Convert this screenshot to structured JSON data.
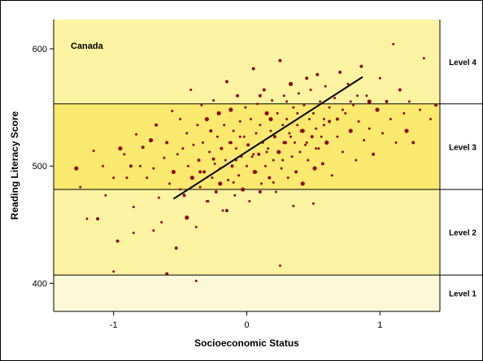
{
  "chart_data": {
    "type": "scatter",
    "title": "",
    "panel_label": "Canada",
    "xlabel": "Socioeconomic Status",
    "ylabel": "Reading Literacy Score",
    "xlim": [
      -1.45,
      1.45
    ],
    "ylim": [
      376,
      625
    ],
    "xticks": [
      {
        "value": -1,
        "label": "-1"
      },
      {
        "value": 0,
        "label": "0"
      },
      {
        "value": 1,
        "label": "1"
      }
    ],
    "yticks": [
      {
        "value": 400,
        "label": "400"
      },
      {
        "value": 500,
        "label": "500"
      },
      {
        "value": 600,
        "label": "600"
      }
    ],
    "bands": [
      {
        "label": "Level 1",
        "from": 376,
        "to": 407,
        "color": "#fcf9d8"
      },
      {
        "label": "Level 2",
        "from": 407,
        "to": 480,
        "color": "#fbf3a2"
      },
      {
        "label": "Level 3",
        "from": 480,
        "to": 553,
        "color": "#f9e96f"
      },
      {
        "label": "Level 4",
        "from": 553,
        "to": 625,
        "color": "#fbf3a2"
      }
    ],
    "point_color": "#8b0f0f",
    "regression_line": {
      "x1": -0.55,
      "y1": 472,
      "x2": 0.87,
      "y2": 576,
      "color": "#000000"
    },
    "points": [
      [
        -1.28,
        498
      ],
      [
        -1.25,
        482
      ],
      [
        -1.2,
        455
      ],
      [
        -1.15,
        513
      ],
      [
        -1.12,
        455
      ],
      [
        -1.08,
        500
      ],
      [
        -1.06,
        475
      ],
      [
        -1.0,
        490
      ],
      [
        -0.97,
        436
      ],
      [
        -0.95,
        515
      ],
      [
        -0.92,
        510
      ],
      [
        -0.9,
        490
      ],
      [
        -0.87,
        500
      ],
      [
        -0.85,
        465
      ],
      [
        -0.83,
        527
      ],
      [
        -0.8,
        500
      ],
      [
        -0.78,
        516
      ],
      [
        -0.75,
        490
      ],
      [
        -0.72,
        522
      ],
      [
        -0.7,
        498
      ],
      [
        -0.68,
        535
      ],
      [
        -0.66,
        473
      ],
      [
        -0.64,
        452
      ],
      [
        -0.62,
        507
      ],
      [
        -0.6,
        520
      ],
      [
        -0.58,
        485
      ],
      [
        -0.56,
        547
      ],
      [
        -0.55,
        495
      ],
      [
        -0.53,
        430
      ],
      [
        -0.52,
        510
      ],
      [
        -0.5,
        540
      ],
      [
        -0.48,
        515
      ],
      [
        -0.47,
        475
      ],
      [
        -0.45,
        528
      ],
      [
        -0.44,
        500
      ],
      [
        -0.42,
        565
      ],
      [
        -0.41,
        490
      ],
      [
        -0.4,
        518
      ],
      [
        -0.38,
        448
      ],
      [
        -0.37,
        535
      ],
      [
        -0.36,
        505
      ],
      [
        -0.35,
        482
      ],
      [
        -0.34,
        552
      ],
      [
        -0.33,
        520
      ],
      [
        -0.32,
        495
      ],
      [
        -0.3,
        540
      ],
      [
        -0.29,
        470
      ],
      [
        -0.28,
        512
      ],
      [
        -0.27,
        530
      ],
      [
        -0.26,
        490
      ],
      [
        -0.25,
        556
      ],
      [
        -0.24,
        502
      ],
      [
        -0.23,
        478
      ],
      [
        -0.22,
        525
      ],
      [
        -0.21,
        545
      ],
      [
        -0.2,
        498
      ],
      [
        -0.19,
        515
      ],
      [
        -0.18,
        462
      ],
      [
        -0.17,
        535
      ],
      [
        -0.16,
        505
      ],
      [
        -0.15,
        572
      ],
      [
        -0.14,
        488
      ],
      [
        -0.13,
        520
      ],
      [
        -0.12,
        548
      ],
      [
        -0.11,
        500
      ],
      [
        -0.1,
        530
      ],
      [
        -0.09,
        475
      ],
      [
        -0.08,
        515
      ],
      [
        -0.07,
        560
      ],
      [
        -0.06,
        492
      ],
      [
        -0.05,
        538
      ],
      [
        -0.04,
        508
      ],
      [
        -0.03,
        480
      ],
      [
        -0.02,
        525
      ],
      [
        -0.01,
        550
      ],
      [
        0.0,
        500
      ],
      [
        0.01,
        518
      ],
      [
        0.02,
        470
      ],
      [
        0.03,
        540
      ],
      [
        0.04,
        508
      ],
      [
        0.05,
        583
      ],
      [
        0.06,
        495
      ],
      [
        0.07,
        528
      ],
      [
        0.08,
        553
      ],
      [
        0.09,
        510
      ],
      [
        0.1,
        535
      ],
      [
        0.11,
        485
      ],
      [
        0.12,
        520
      ],
      [
        0.13,
        565
      ],
      [
        0.14,
        500
      ],
      [
        0.15,
        545
      ],
      [
        0.16,
        515
      ],
      [
        0.17,
        490
      ],
      [
        0.18,
        530
      ],
      [
        0.19,
        556
      ],
      [
        0.2,
        505
      ],
      [
        0.21,
        525
      ],
      [
        0.22,
        478
      ],
      [
        0.23,
        545
      ],
      [
        0.24,
        512
      ],
      [
        0.25,
        590
      ],
      [
        0.26,
        498
      ],
      [
        0.27,
        535
      ],
      [
        0.28,
        560
      ],
      [
        0.29,
        520
      ],
      [
        0.3,
        540
      ],
      [
        0.31,
        490
      ],
      [
        0.32,
        528
      ],
      [
        0.33,
        570
      ],
      [
        0.34,
        508
      ],
      [
        0.35,
        550
      ],
      [
        0.36,
        520
      ],
      [
        0.37,
        495
      ],
      [
        0.38,
        535
      ],
      [
        0.39,
        562
      ],
      [
        0.4,
        512
      ],
      [
        0.41,
        530
      ],
      [
        0.42,
        485
      ],
      [
        0.43,
        552
      ],
      [
        0.44,
        518
      ],
      [
        0.45,
        575
      ],
      [
        0.46,
        505
      ],
      [
        0.47,
        540
      ],
      [
        0.48,
        565
      ],
      [
        0.49,
        525
      ],
      [
        0.5,
        545
      ],
      [
        0.51,
        498
      ],
      [
        0.52,
        532
      ],
      [
        0.53,
        578
      ],
      [
        0.54,
        515
      ],
      [
        0.55,
        555
      ],
      [
        0.56,
        525
      ],
      [
        0.57,
        502
      ],
      [
        0.58,
        540
      ],
      [
        0.59,
        568
      ],
      [
        0.6,
        520
      ],
      [
        0.62,
        538
      ],
      [
        0.64,
        492
      ],
      [
        0.66,
        558
      ],
      [
        0.68,
        525
      ],
      [
        0.7,
        580
      ],
      [
        0.72,
        512
      ],
      [
        0.74,
        545
      ],
      [
        0.76,
        570
      ],
      [
        0.78,
        530
      ],
      [
        0.8,
        552
      ],
      [
        0.82,
        505
      ],
      [
        0.84,
        538
      ],
      [
        0.86,
        585
      ],
      [
        0.88,
        522
      ],
      [
        0.9,
        560
      ],
      [
        0.92,
        532
      ],
      [
        0.95,
        510
      ],
      [
        0.98,
        548
      ],
      [
        1.0,
        575
      ],
      [
        1.02,
        528
      ],
      [
        1.05,
        555
      ],
      [
        1.08,
        540
      ],
      [
        1.1,
        604
      ],
      [
        1.12,
        520
      ],
      [
        1.15,
        565
      ],
      [
        1.18,
        545
      ],
      [
        1.2,
        530
      ],
      [
        1.22,
        555
      ],
      [
        1.25,
        520
      ],
      [
        1.3,
        548
      ],
      [
        1.33,
        592
      ],
      [
        1.38,
        540
      ],
      [
        1.42,
        552
      ],
      [
        0.25,
        415
      ],
      [
        -0.38,
        402
      ],
      [
        -0.45,
        456
      ],
      [
        -0.6,
        408
      ],
      [
        -1.0,
        410
      ],
      [
        -0.3,
        470
      ],
      [
        0.35,
        466
      ],
      [
        0.1,
        478
      ],
      [
        -0.1,
        486
      ],
      [
        0.2,
        486
      ],
      [
        0.5,
        468
      ],
      [
        -0.2,
        485
      ],
      [
        -0.5,
        480
      ],
      [
        -0.7,
        445
      ],
      [
        -0.85,
        443
      ],
      [
        -0.15,
        462
      ],
      [
        0.45,
        520
      ],
      [
        -0.05,
        525
      ],
      [
        0.15,
        512
      ],
      [
        0.28,
        520
      ],
      [
        0.42,
        530
      ],
      [
        0.58,
        535
      ],
      [
        0.05,
        510
      ],
      [
        -0.25,
        506
      ],
      [
        0.62,
        550
      ],
      [
        0.72,
        548
      ],
      [
        0.3,
        555
      ],
      [
        0.1,
        560
      ],
      [
        -0.08,
        505
      ],
      [
        0.18,
        540
      ],
      [
        0.38,
        545
      ],
      [
        -0.35,
        495
      ],
      [
        0.07,
        495
      ],
      [
        0.27,
        505
      ],
      [
        0.52,
        515
      ],
      [
        0.68,
        540
      ],
      [
        0.78,
        555
      ],
      [
        0.83,
        560
      ],
      [
        0.92,
        555
      ],
      [
        -0.12,
        520
      ],
      [
        0.33,
        525
      ]
    ]
  },
  "colors": {
    "frame": "#000000",
    "page_background": "#ffffff",
    "tick_line": "#000000"
  }
}
